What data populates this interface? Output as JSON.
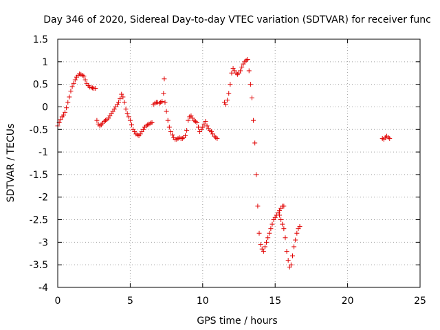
{
  "chart_data": {
    "type": "scatter",
    "title": "Day 346 of 2020, Sidereal Day-to-day VTEC variation (SDTVAR) for receiver func",
    "xlabel": "GPS time / hours",
    "ylabel": "SDTVAR / TECUs",
    "xlim": [
      0,
      25
    ],
    "ylim": [
      -4,
      1.5
    ],
    "xticks": [
      0,
      5,
      10,
      15,
      20,
      25
    ],
    "xtick_labels": [
      "0",
      "5",
      "10",
      "15",
      "20",
      "25"
    ],
    "yticks": [
      -4,
      -3.5,
      -3,
      -2.5,
      -2,
      -1.5,
      -1,
      -0.5,
      0,
      0.5,
      1,
      1.5
    ],
    "ytick_labels": [
      "-4",
      "-3.5",
      "-3",
      "-2.5",
      "-2",
      "-1.5",
      "-1",
      "-0.5",
      "0",
      "0.5",
      "1",
      "1.5"
    ],
    "grid": true,
    "marker": "+",
    "marker_color": "#e00000",
    "series": [
      {
        "name": "SDTVAR",
        "x": [
          0.0,
          0.1,
          0.2,
          0.3,
          0.4,
          0.5,
          0.6,
          0.7,
          0.8,
          0.9,
          1.0,
          1.1,
          1.2,
          1.3,
          1.4,
          1.5,
          1.6,
          1.7,
          1.8,
          1.9,
          2.0,
          2.1,
          2.2,
          2.3,
          2.4,
          2.5,
          2.6,
          2.7,
          2.8,
          2.9,
          3.0,
          3.1,
          3.2,
          3.3,
          3.4,
          3.5,
          3.6,
          3.7,
          3.8,
          3.9,
          4.0,
          4.1,
          4.2,
          4.3,
          4.4,
          4.5,
          4.6,
          4.7,
          4.8,
          4.9,
          5.0,
          5.1,
          5.2,
          5.3,
          5.4,
          5.5,
          5.6,
          5.7,
          5.8,
          5.9,
          6.0,
          6.1,
          6.2,
          6.3,
          6.4,
          6.5,
          6.6,
          6.7,
          6.8,
          6.9,
          7.0,
          7.1,
          7.2,
          7.3,
          7.35,
          7.4,
          7.5,
          7.6,
          7.7,
          7.8,
          7.9,
          8.0,
          8.1,
          8.2,
          8.3,
          8.4,
          8.5,
          8.6,
          8.7,
          8.8,
          8.9,
          9.0,
          9.1,
          9.2,
          9.3,
          9.4,
          9.5,
          9.6,
          9.7,
          9.8,
          9.9,
          10.0,
          10.1,
          10.2,
          10.3,
          10.4,
          10.5,
          10.6,
          10.7,
          10.8,
          10.9,
          11.0,
          11.5,
          11.6,
          11.7,
          11.8,
          11.9,
          12.0,
          12.1,
          12.2,
          12.3,
          12.4,
          12.5,
          12.6,
          12.7,
          12.8,
          12.9,
          13.0,
          13.1,
          13.2,
          13.3,
          13.4,
          13.5,
          13.6,
          13.7,
          13.8,
          13.9,
          14.0,
          14.1,
          14.2,
          14.3,
          14.4,
          14.5,
          14.6,
          14.7,
          14.8,
          14.9,
          15.0,
          15.1,
          15.2,
          15.3,
          15.4,
          15.5,
          15.6,
          15.3,
          15.4,
          15.5,
          15.6,
          15.7,
          15.8,
          15.9,
          16.0,
          16.1,
          16.2,
          16.3,
          16.4,
          16.5,
          16.6,
          16.7,
          22.4,
          22.5,
          22.6,
          22.7,
          22.8,
          22.9
        ],
        "y": [
          -0.42,
          -0.35,
          -0.28,
          -0.22,
          -0.18,
          -0.12,
          -0.02,
          0.1,
          0.22,
          0.35,
          0.45,
          0.52,
          0.6,
          0.66,
          0.7,
          0.73,
          0.72,
          0.7,
          0.68,
          0.6,
          0.52,
          0.47,
          0.44,
          0.43,
          0.42,
          0.41,
          0.41,
          -0.3,
          -0.38,
          -0.42,
          -0.4,
          -0.36,
          -0.32,
          -0.3,
          -0.28,
          -0.25,
          -0.2,
          -0.15,
          -0.1,
          -0.05,
          0.0,
          0.05,
          0.1,
          0.18,
          0.28,
          0.22,
          0.1,
          -0.05,
          -0.15,
          -0.22,
          -0.3,
          -0.4,
          -0.5,
          -0.55,
          -0.6,
          -0.62,
          -0.64,
          -0.6,
          -0.55,
          -0.5,
          -0.45,
          -0.42,
          -0.4,
          -0.38,
          -0.36,
          -0.35,
          0.05,
          0.08,
          0.1,
          0.1,
          0.08,
          0.1,
          0.12,
          0.3,
          0.62,
          0.1,
          -0.1,
          -0.3,
          -0.45,
          -0.55,
          -0.62,
          -0.68,
          -0.72,
          -0.72,
          -0.7,
          -0.68,
          -0.7,
          -0.7,
          -0.68,
          -0.64,
          -0.52,
          -0.3,
          -0.22,
          -0.2,
          -0.25,
          -0.3,
          -0.32,
          -0.35,
          -0.45,
          -0.55,
          -0.5,
          -0.45,
          -0.38,
          -0.32,
          -0.42,
          -0.48,
          -0.52,
          -0.55,
          -0.6,
          -0.65,
          -0.68,
          -0.7,
          0.1,
          0.05,
          0.15,
          0.3,
          0.5,
          0.75,
          0.85,
          0.8,
          0.75,
          0.72,
          0.75,
          0.8,
          0.88,
          0.95,
          1.0,
          1.03,
          1.05,
          0.8,
          0.5,
          0.2,
          -0.3,
          -0.8,
          -1.5,
          -2.2,
          -2.8,
          -3.05,
          -3.15,
          -3.2,
          -3.1,
          -3.0,
          -2.9,
          -2.8,
          -2.7,
          -2.6,
          -2.5,
          -2.45,
          -2.4,
          -2.35,
          -2.3,
          -2.25,
          -2.2,
          -2.2,
          -2.4,
          -2.5,
          -2.6,
          -2.7,
          -2.9,
          -3.2,
          -3.4,
          -3.55,
          -3.5,
          -3.3,
          -3.1,
          -2.95,
          -2.8,
          -2.7,
          -2.65,
          -0.7,
          -0.72,
          -0.68,
          -0.65,
          -0.68,
          -0.7
        ]
      }
    ]
  }
}
